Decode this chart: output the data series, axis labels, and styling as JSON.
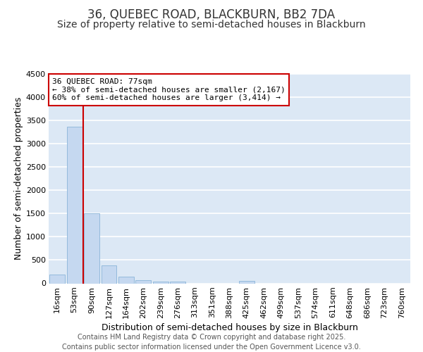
{
  "title": "36, QUEBEC ROAD, BLACKBURN, BB2 7DA",
  "subtitle": "Size of property relative to semi-detached houses in Blackburn",
  "xlabel": "Distribution of semi-detached houses by size in Blackburn",
  "ylabel": "Number of semi-detached properties",
  "categories": [
    "16sqm",
    "53sqm",
    "90sqm",
    "127sqm",
    "164sqm",
    "202sqm",
    "239sqm",
    "276sqm",
    "313sqm",
    "351sqm",
    "388sqm",
    "425sqm",
    "462sqm",
    "499sqm",
    "537sqm",
    "574sqm",
    "611sqm",
    "648sqm",
    "686sqm",
    "723sqm",
    "760sqm"
  ],
  "values": [
    195,
    3370,
    1500,
    390,
    150,
    70,
    45,
    40,
    0,
    0,
    0,
    60,
    0,
    0,
    0,
    0,
    0,
    0,
    0,
    0,
    0
  ],
  "bar_color": "#c5d8f0",
  "bar_edge_color": "#8ab4d8",
  "bg_color": "#dce8f5",
  "grid_color": "#ffffff",
  "vline_color": "#cc0000",
  "vline_position": 1.5,
  "annotation_text_line1": "36 QUEBEC ROAD: 77sqm",
  "annotation_text_line2": "← 38% of semi-detached houses are smaller (2,167)",
  "annotation_text_line3": "60% of semi-detached houses are larger (3,414) →",
  "annotation_box_color": "#cc0000",
  "ylim": [
    0,
    4500
  ],
  "yticks": [
    0,
    500,
    1000,
    1500,
    2000,
    2500,
    3000,
    3500,
    4000,
    4500
  ],
  "footer_text": "Contains HM Land Registry data © Crown copyright and database right 2025.\nContains public sector information licensed under the Open Government Licence v3.0.",
  "title_fontsize": 12,
  "subtitle_fontsize": 10,
  "axis_label_fontsize": 9,
  "tick_fontsize": 8,
  "annotation_fontsize": 8,
  "footer_fontsize": 7
}
